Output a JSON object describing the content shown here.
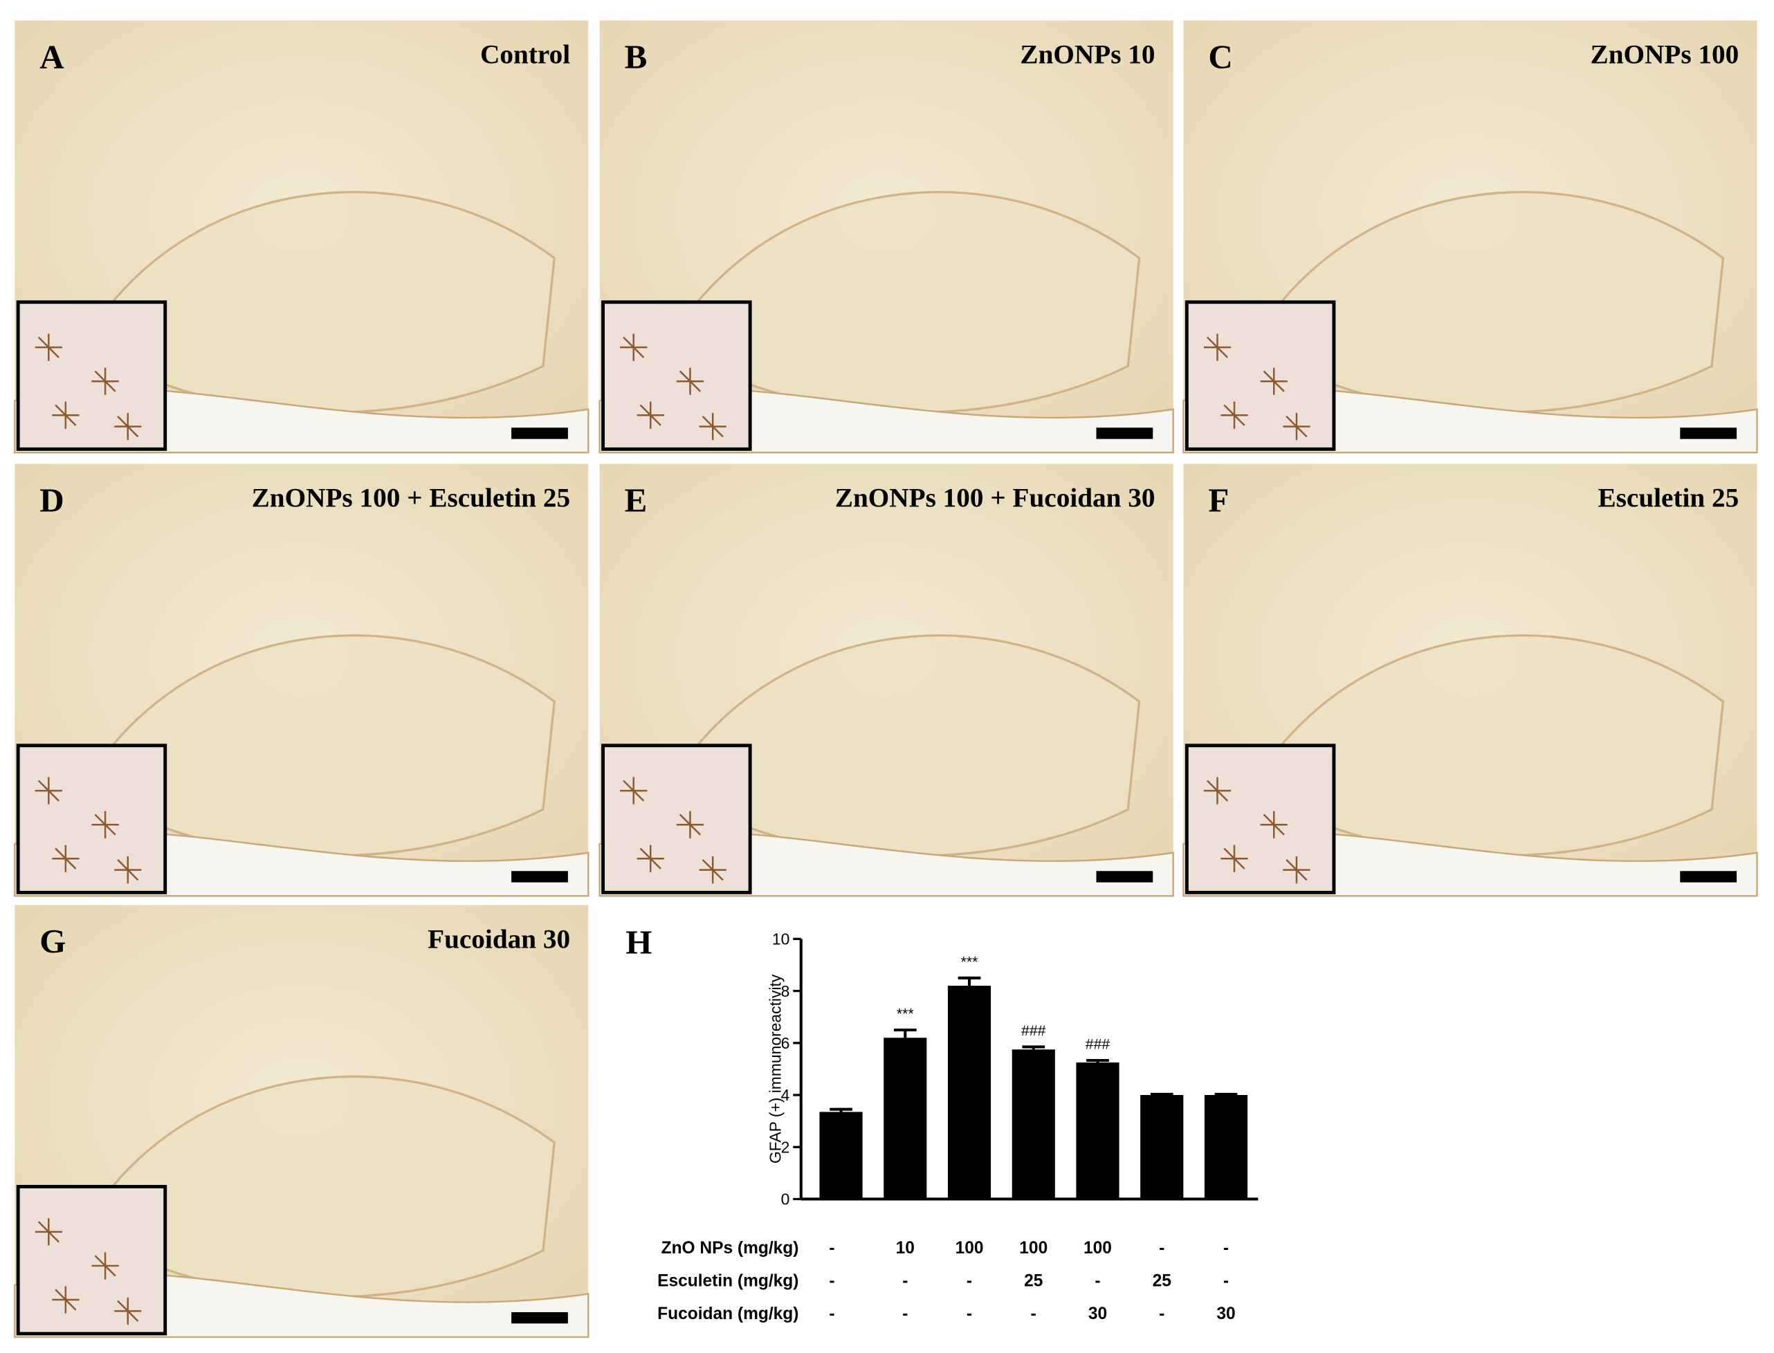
{
  "panels": [
    {
      "letter": "A",
      "label": "Control"
    },
    {
      "letter": "B",
      "label": "ZnONPs 10"
    },
    {
      "letter": "C",
      "label": "ZnONPs 100"
    },
    {
      "letter": "D",
      "label": "ZnONPs 100 + Esculetin 25"
    },
    {
      "letter": "E",
      "label": "ZnONPs 100 + Fucoidan 30"
    },
    {
      "letter": "F",
      "label": "Esculetin 25"
    },
    {
      "letter": "G",
      "label": "Fucoidan 30"
    }
  ],
  "chart_data": {
    "type": "bar",
    "letter": "H",
    "y_label": "GFAP (+) immunoreactivity",
    "categories": [
      null,
      null,
      null,
      null,
      null,
      null,
      null
    ],
    "values": [
      3.35,
      6.2,
      8.2,
      5.75,
      5.25,
      4.0,
      4.0
    ],
    "errors": [
      0.1,
      0.3,
      0.3,
      0.1,
      0.08,
      0.03,
      0.03
    ],
    "annotations": [
      null,
      "***",
      "***",
      "###",
      "###",
      null,
      null
    ],
    "color": "#000000",
    "ylim": [
      0,
      10
    ],
    "yticks": [
      0,
      2,
      4,
      6,
      8,
      10
    ],
    "treatments": [
      {
        "label": "ZnO NPs (mg/kg)",
        "values": [
          "-",
          "10",
          "100",
          "100",
          "100",
          "-",
          "-"
        ]
      },
      {
        "label": "Esculetin (mg/kg)",
        "values": [
          "-",
          "-",
          "-",
          "25",
          "-",
          "25",
          "-"
        ]
      },
      {
        "label": "Fucoidan (mg/kg)",
        "values": [
          "-",
          "-",
          "-",
          "-",
          "30",
          "-",
          "30"
        ]
      }
    ]
  }
}
